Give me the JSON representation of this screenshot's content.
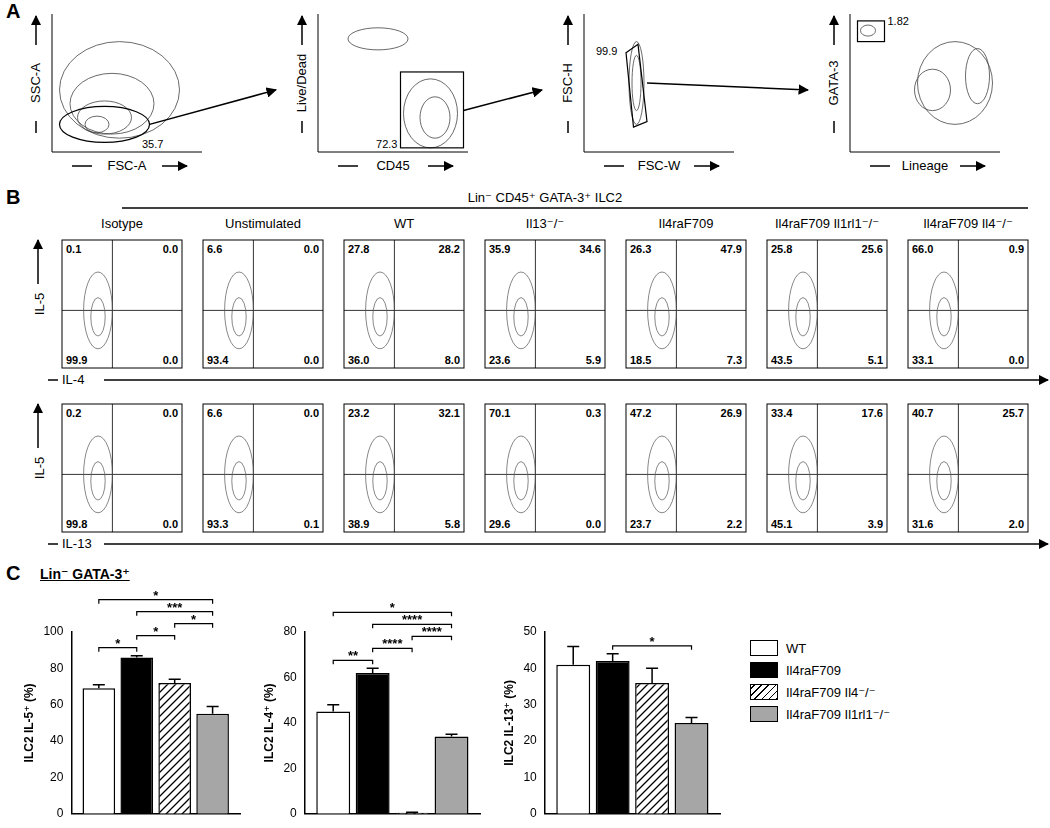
{
  "panel_labels": [
    "A",
    "B",
    "C"
  ],
  "gating": [
    {
      "x_label": "FSC-A",
      "y_label": "SSC-A",
      "gate_label": "35.7"
    },
    {
      "x_label": "CD45",
      "y_label": "Live/Dead",
      "gate_label": "72.3"
    },
    {
      "x_label": "FSC-W",
      "y_label": "FSC-H",
      "gate_label": "99.9"
    },
    {
      "x_label": "Lineage",
      "y_label": "GATA-3",
      "gate_label": "1.82"
    }
  ],
  "quadrant_plots": {
    "header": "Lin⁻ CD45⁺ GATA-3⁺ ILC2",
    "columns": [
      "Isotype",
      "Unstimulated",
      "WT",
      "Il13⁻/⁻",
      "Il4raF709",
      "Il4raF709 Il1rl1⁻/⁻",
      "Il4raF709 Il4⁻/⁻"
    ],
    "rows": [
      {
        "x_label": "IL-4",
        "y_label": "IL-5",
        "quadrants": [
          {
            "upper_left": "0.1",
            "upper_right": "0.0",
            "lower_left": "99.9",
            "lower_right": "0.0"
          },
          {
            "upper_left": "6.6",
            "upper_right": "0.0",
            "lower_left": "93.4",
            "lower_right": "0.0"
          },
          {
            "upper_left": "27.8",
            "upper_right": "28.2",
            "lower_left": "36.0",
            "lower_right": "8.0"
          },
          {
            "upper_left": "35.9",
            "upper_right": "34.6",
            "lower_left": "23.6",
            "lower_right": "5.9"
          },
          {
            "upper_left": "26.3",
            "upper_right": "47.9",
            "lower_left": "18.5",
            "lower_right": "7.3"
          },
          {
            "upper_left": "25.8",
            "upper_right": "25.6",
            "lower_left": "43.5",
            "lower_right": "5.1"
          },
          {
            "upper_left": "66.0",
            "upper_right": "0.9",
            "lower_left": "33.1",
            "lower_right": "0.0"
          }
        ]
      },
      {
        "x_label": "IL-13",
        "y_label": "IL-5",
        "quadrants": [
          {
            "upper_left": "0.2",
            "upper_right": "0.0",
            "lower_left": "99.8",
            "lower_right": "0.0"
          },
          {
            "upper_left": "6.6",
            "upper_right": "0.0",
            "lower_left": "93.3",
            "lower_right": "0.1"
          },
          {
            "upper_left": "23.2",
            "upper_right": "32.1",
            "lower_left": "38.9",
            "lower_right": "5.8"
          },
          {
            "upper_left": "70.1",
            "upper_right": "0.3",
            "lower_left": "29.6",
            "lower_right": "0.0"
          },
          {
            "upper_left": "47.2",
            "upper_right": "26.9",
            "lower_left": "23.7",
            "lower_right": "2.2"
          },
          {
            "upper_left": "33.4",
            "upper_right": "17.6",
            "lower_left": "45.1",
            "lower_right": "3.9"
          },
          {
            "upper_left": "40.7",
            "upper_right": "25.7",
            "lower_left": "31.6",
            "lower_right": "2.0"
          }
        ]
      }
    ]
  },
  "panel_c_header": "Lin⁻ GATA-3⁺",
  "chart_data": [
    {
      "type": "bar",
      "y_label": "ILC2 IL-5⁺ (%)",
      "categories": [
        null
      ],
      "series": [
        {
          "name": "WT",
          "color": "#ffffff",
          "values": [
            69
          ],
          "errors": [
            2
          ]
        },
        {
          "name": "Il4raF709",
          "color": "#000000",
          "values": [
            86
          ],
          "errors": [
            1
          ]
        },
        {
          "name": "Il4raF709 Il4⁻/⁻",
          "color": "#ffffff",
          "marker": "hatch",
          "values": [
            72
          ],
          "errors": [
            2
          ]
        },
        {
          "name": "Il4raF709 Il1rl1⁻/⁻",
          "color": "#a6a6a6",
          "values": [
            55
          ],
          "errors": [
            4
          ]
        }
      ],
      "ylim": [
        0,
        100
      ],
      "yticks": [
        0,
        20,
        40,
        60,
        80,
        100
      ],
      "grid": false,
      "tick_labels": "y",
      "annotations": [
        {
          "from": "WT",
          "to": "Il4raF709",
          "text": "*"
        },
        {
          "from": "Il4raF709",
          "to": "Il4raF709 Il4⁻/⁻",
          "text": "*"
        },
        {
          "from": "Il4raF709 Il4⁻/⁻",
          "to": "Il4raF709 Il1rl1⁻/⁻",
          "text": "*"
        },
        {
          "from": "Il4raF709",
          "to": "Il4raF709 Il1rl1⁻/⁻",
          "text": "***"
        },
        {
          "from": "WT",
          "to": "Il4raF709 Il1rl1⁻/⁻",
          "text": "*"
        }
      ]
    },
    {
      "type": "bar",
      "y_label": "ILC2 IL-4⁺ (%)",
      "categories": [
        null
      ],
      "series": [
        {
          "name": "WT",
          "color": "#ffffff",
          "values": [
            45
          ],
          "errors": [
            3
          ]
        },
        {
          "name": "Il4raF709",
          "color": "#000000",
          "values": [
            62
          ],
          "errors": [
            2
          ]
        },
        {
          "name": "Il4raF709 Il4⁻/⁻",
          "color": "#ffffff",
          "marker": "hatch",
          "values": [
            0.5
          ],
          "errors": [
            0.2
          ]
        },
        {
          "name": "Il4raF709 Il1rl1⁻/⁻",
          "color": "#a6a6a6",
          "values": [
            34
          ],
          "errors": [
            1
          ]
        }
      ],
      "ylim": [
        0,
        80
      ],
      "yticks": [
        0,
        20,
        40,
        60,
        80
      ],
      "grid": false,
      "tick_labels": "y",
      "annotations": [
        {
          "from": "WT",
          "to": "Il4raF709",
          "text": "**"
        },
        {
          "from": "Il4raF709",
          "to": "Il4raF709 Il4⁻/⁻",
          "text": "****"
        },
        {
          "from": "Il4raF709 Il4⁻/⁻",
          "to": "Il4raF709 Il1rl1⁻/⁻",
          "text": "****"
        },
        {
          "from": "Il4raF709",
          "to": "Il4raF709 Il1rl1⁻/⁻",
          "text": "****"
        },
        {
          "from": "WT",
          "to": "Il4raF709 Il1rl1⁻/⁻",
          "text": "*"
        }
      ]
    },
    {
      "type": "bar",
      "y_label": "ILC2 IL-13⁺ (%)",
      "categories": [
        null
      ],
      "series": [
        {
          "name": "WT",
          "color": "#ffffff",
          "values": [
            41
          ],
          "errors": [
            5
          ]
        },
        {
          "name": "Il4raF709",
          "color": "#000000",
          "values": [
            42
          ],
          "errors": [
            2
          ]
        },
        {
          "name": "Il4raF709 Il4⁻/⁻",
          "color": "#ffffff",
          "marker": "hatch",
          "values": [
            36
          ],
          "errors": [
            4
          ]
        },
        {
          "name": "Il4raF709 Il1rl1⁻/⁻",
          "color": "#a6a6a6",
          "values": [
            25
          ],
          "errors": [
            1.5
          ]
        }
      ],
      "ylim": [
        0,
        50
      ],
      "yticks": [
        0,
        10,
        20,
        30,
        40,
        50
      ],
      "grid": false,
      "tick_labels": "y",
      "legend": "right",
      "annotations": [
        {
          "from": "Il4raF709",
          "to": "Il4raF709 Il1rl1⁻/⁻",
          "text": "*"
        }
      ]
    }
  ]
}
